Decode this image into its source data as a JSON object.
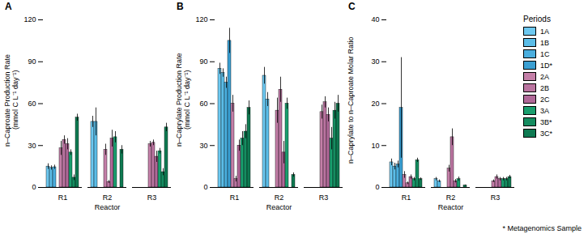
{
  "chart_data": [
    {
      "type": "bar",
      "title": "A",
      "categories": [
        "R1",
        "R2",
        "R3"
      ],
      "xlabel": "Reactor",
      "ylabel": "n–Caproate Production Rate\n(mmol C L⁻¹ day⁻¹)",
      "ylim": [
        0,
        120
      ],
      "yticks": [
        0,
        30,
        60,
        90,
        120
      ],
      "grid": false,
      "series": [
        {
          "name": "1A",
          "color": "#6DC8F0",
          "values": [
            15.0,
            47.0,
            null
          ],
          "errors": [
            2.0,
            4.0,
            null
          ]
        },
        {
          "name": "1B",
          "color": "#5BBDE8",
          "values": [
            14.0,
            47.0,
            null
          ],
          "errors": [
            1.5,
            10.0,
            null
          ]
        },
        {
          "name": "1C",
          "color": "#4AAEDE",
          "values": [
            14.5,
            null,
            null
          ],
          "errors": [
            1.5,
            null,
            null
          ]
        },
        {
          "name": "1D*",
          "color": "#3A9FD2",
          "values": [
            null,
            null,
            null
          ],
          "errors": [
            null,
            null,
            null
          ]
        },
        {
          "name": "2A",
          "color": "#C47FA8",
          "values": [
            28.0,
            27.0,
            31.0
          ],
          "errors": [
            5.0,
            4.0,
            2.0
          ]
        },
        {
          "name": "2B",
          "color": "#BA74A0",
          "values": [
            34.0,
            4.0,
            32.0
          ],
          "errors": [
            3.0,
            1.0,
            2.0
          ]
        },
        {
          "name": "2C",
          "color": "#B06898",
          "values": [
            31.0,
            35.0,
            22.0
          ],
          "errors": [
            4.0,
            6.0,
            4.0
          ]
        },
        {
          "name": "3A",
          "color": "#1A9E6E",
          "values": [
            25.0,
            36.0,
            26.0
          ],
          "errors": [
            2.0,
            4.0,
            2.0
          ]
        },
        {
          "name": "3B*",
          "color": "#158C60",
          "values": [
            7.0,
            null,
            11.0
          ],
          "errors": [
            2.0,
            null,
            2.5
          ]
        },
        {
          "name": "3C*",
          "color": "#0F7A52",
          "values": [
            50.0,
            27.0,
            43.0
          ],
          "errors": [
            2.5,
            3.0,
            3.0
          ]
        }
      ]
    },
    {
      "type": "bar",
      "title": "B",
      "categories": [
        "R1",
        "R2",
        "R3"
      ],
      "xlabel": "Reactor",
      "ylabel": "n–Caprylate Production Rate\n(mmol C L⁻¹ day⁻¹)",
      "ylim": [
        0,
        120
      ],
      "yticks": [
        0,
        30,
        60,
        90,
        120
      ],
      "grid": false,
      "series": [
        {
          "name": "1A",
          "color": "#6DC8F0",
          "values": [
            85.0,
            80.0,
            null
          ],
          "errors": [
            4.0,
            6.0,
            null
          ]
        },
        {
          "name": "1B",
          "color": "#5BBDE8",
          "values": [
            82.0,
            63.0,
            null
          ],
          "errors": [
            3.0,
            5.0,
            null
          ]
        },
        {
          "name": "1C",
          "color": "#4AAEDE",
          "values": [
            75.0,
            null,
            null
          ],
          "errors": [
            4.0,
            null,
            null
          ]
        },
        {
          "name": "1D*",
          "color": "#3A9FD2",
          "values": [
            105.0,
            null,
            null
          ],
          "errors": [
            9.0,
            null,
            null
          ]
        },
        {
          "name": "2A",
          "color": "#C47FA8",
          "values": [
            60.0,
            55.0,
            54.0
          ],
          "errors": [
            6.0,
            9.0,
            5.0
          ]
        },
        {
          "name": "2B",
          "color": "#BA74A0",
          "values": [
            6.0,
            70.0,
            61.0
          ],
          "errors": [
            2.0,
            9.0,
            4.0
          ]
        },
        {
          "name": "2C",
          "color": "#B06898",
          "values": [
            30.0,
            25.0,
            52.0
          ],
          "errors": [
            4.0,
            8.0,
            5.0
          ]
        },
        {
          "name": "3A",
          "color": "#1A9E6E",
          "values": [
            35.0,
            60.0,
            35.0
          ],
          "errors": [
            5.0,
            4.0,
            8.0
          ]
        },
        {
          "name": "3B*",
          "color": "#158C60",
          "values": [
            40.0,
            null,
            55.0
          ],
          "errors": [
            5.0,
            null,
            6.0
          ]
        },
        {
          "name": "3C*",
          "color": "#0F7A52",
          "values": [
            57.0,
            9.0,
            60.0
          ],
          "errors": [
            5.0,
            1.5,
            6.0
          ]
        }
      ]
    },
    {
      "type": "bar",
      "title": "C",
      "categories": [
        "R1",
        "R2",
        "R3"
      ],
      "xlabel": "Reactor",
      "ylabel": "n–Caprylate to n–Caproate Molar Ratio",
      "ylim": [
        0,
        40
      ],
      "yticks": [
        0,
        10,
        20,
        30,
        40
      ],
      "grid": false,
      "legend": "right",
      "legend_title": "Periods",
      "annotations": [
        "* Metagenomics Sample"
      ],
      "series": [
        {
          "name": "1A",
          "color": "#6DC8F0",
          "values": [
            6.0,
            2.0,
            null
          ],
          "errors": [
            0.8,
            0.4,
            null
          ]
        },
        {
          "name": "1B",
          "color": "#5BBDE8",
          "values": [
            5.0,
            1.5,
            null
          ],
          "errors": [
            0.8,
            0.3,
            null
          ]
        },
        {
          "name": "1C",
          "color": "#4AAEDE",
          "values": [
            5.5,
            null,
            null
          ],
          "errors": [
            0.8,
            null,
            null
          ]
        },
        {
          "name": "1D*",
          "color": "#3A9FD2",
          "values": [
            19.0,
            null,
            null
          ],
          "errors": [
            12.0,
            null,
            null
          ]
        },
        {
          "name": "2A",
          "color": "#C47FA8",
          "values": [
            3.0,
            4.5,
            1.5
          ],
          "errors": [
            0.8,
            0.8,
            0.3
          ]
        },
        {
          "name": "2B",
          "color": "#BA74A0",
          "values": [
            1.0,
            12.0,
            2.5
          ],
          "errors": [
            0.3,
            2.0,
            0.5
          ]
        },
        {
          "name": "2C",
          "color": "#B06898",
          "values": [
            2.5,
            1.5,
            2.0
          ],
          "errors": [
            0.5,
            0.4,
            0.4
          ]
        },
        {
          "name": "3A",
          "color": "#1A9E6E",
          "values": [
            2.0,
            2.0,
            2.0
          ],
          "errors": [
            0.4,
            0.5,
            0.4
          ]
        },
        {
          "name": "3B*",
          "color": "#158C60",
          "values": [
            6.5,
            null,
            2.0
          ],
          "errors": [
            0.5,
            null,
            0.4
          ]
        },
        {
          "name": "3C*",
          "color": "#0F7A52",
          "values": [
            2.0,
            0.5,
            2.5
          ],
          "errors": [
            0.3,
            0.1,
            0.4
          ]
        }
      ]
    }
  ]
}
